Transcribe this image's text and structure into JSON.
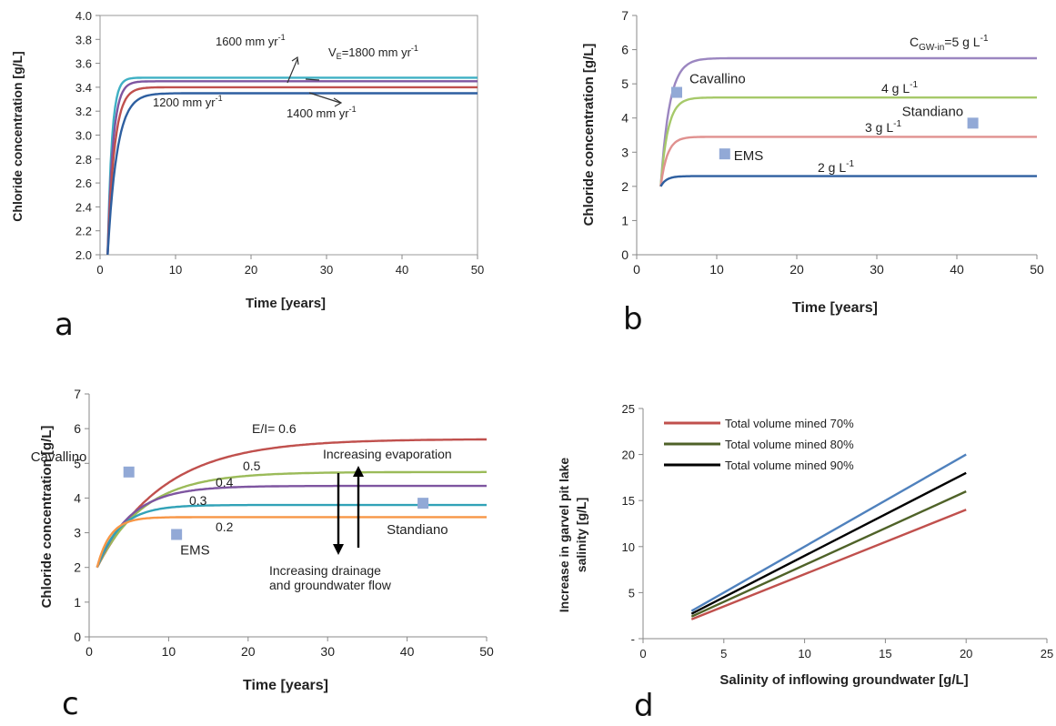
{
  "chart_data": [
    {
      "panel": "a",
      "type": "line",
      "xlabel": "Time [years]",
      "ylabel": "Chloride concentration [g/L]",
      "xlim": [
        0,
        50
      ],
      "ylim": [
        2.0,
        4.0
      ],
      "xticks": [
        0,
        10,
        20,
        30,
        40,
        50
      ],
      "yticks": [
        2.0,
        2.2,
        2.4,
        2.6,
        2.8,
        3.0,
        3.2,
        3.4,
        3.6,
        3.8,
        4.0
      ],
      "grid": false,
      "series": [
        {
          "color": "#3fb0c4",
          "start": [
            1,
            2.0
          ],
          "plateau": 3.48,
          "k": 1.8
        },
        {
          "color": "#7e55a0",
          "start": [
            1,
            2.0
          ],
          "plateau": 3.45,
          "k": 1.4
        },
        {
          "color": "#c0504d",
          "start": [
            1,
            2.0
          ],
          "plateau": 3.4,
          "k": 1.1
        },
        {
          "color": "#2e5fa0",
          "start": [
            1,
            2.0
          ],
          "plateau": 3.35,
          "k": 0.8
        }
      ],
      "annotations": [
        {
          "text": "1600 mm yr",
          "sup": "-1"
        },
        {
          "text": "V",
          "sub": "E",
          "text2": "=1800 mm yr",
          "sup": "-1"
        },
        {
          "text": "1200 mm yr",
          "sup": "-1"
        },
        {
          "text": "1400 mm yr",
          "sup": "-1"
        }
      ]
    },
    {
      "panel": "b",
      "type": "line",
      "xlabel": "Time [years]",
      "ylabel": "Chloride concentration [g/L]",
      "xlim": [
        0,
        50
      ],
      "ylim": [
        0,
        7
      ],
      "xticks": [
        0,
        10,
        20,
        30,
        40,
        50
      ],
      "yticks": [
        0,
        1,
        2,
        3,
        4,
        5,
        6,
        7
      ],
      "grid": false,
      "series": [
        {
          "color": "#9b86c0",
          "start": [
            3,
            2.0
          ],
          "plateau": 5.75,
          "k": 0.9
        },
        {
          "color": "#a6c96a",
          "start": [
            3,
            2.0
          ],
          "plateau": 4.6,
          "k": 1.1
        },
        {
          "color": "#e0918f",
          "start": [
            3,
            2.0
          ],
          "plateau": 3.45,
          "k": 1.2
        },
        {
          "color": "#2e5fa0",
          "start": [
            3,
            2.0
          ],
          "plateau": 2.3,
          "k": 1.4
        }
      ],
      "points": [
        {
          "label": "Cavallino",
          "x": 5,
          "y": 4.75
        },
        {
          "label": "EMS",
          "x": 11,
          "y": 2.95
        },
        {
          "label": "Standiano",
          "x": 42,
          "y": 3.85
        }
      ],
      "annotations": [
        {
          "text": "C",
          "sub": "GW-in",
          "text2": "=5 g L",
          "sup": "-1"
        },
        {
          "text": "4 g L",
          "sup": "-1"
        },
        {
          "text": "3 g L",
          "sup": "-1"
        },
        {
          "text": "2 g L",
          "sup": "-1"
        }
      ]
    },
    {
      "panel": "c",
      "type": "line",
      "xlabel": "Time [years]",
      "ylabel": "Chloride concentration [g/L]",
      "xlim": [
        0,
        50
      ],
      "ylim": [
        0,
        7
      ],
      "xticks": [
        0,
        10,
        20,
        30,
        40,
        50
      ],
      "yticks": [
        0,
        1,
        2,
        3,
        4,
        5,
        6,
        7
      ],
      "grid": false,
      "series": [
        {
          "color": "#c0504d",
          "start": [
            1,
            2.0
          ],
          "plateau": 5.7,
          "k": 0.12
        },
        {
          "color": "#9bbb59",
          "start": [
            1,
            2.0
          ],
          "plateau": 4.75,
          "k": 0.17
        },
        {
          "color": "#7e55a0",
          "start": [
            1,
            2.0
          ],
          "plateau": 4.35,
          "k": 0.24
        },
        {
          "color": "#31a2b7",
          "start": [
            1,
            2.0
          ],
          "plateau": 3.8,
          "k": 0.35
        },
        {
          "color": "#f79646",
          "start": [
            1,
            2.0
          ],
          "plateau": 3.45,
          "k": 0.6
        }
      ],
      "points": [
        {
          "label": "Cavallino",
          "x": 5,
          "y": 4.75
        },
        {
          "label": "EMS",
          "x": 11,
          "y": 2.95
        },
        {
          "label": "Standiano",
          "x": 42,
          "y": 3.85
        }
      ],
      "annotations": [
        "E/I= 0.6",
        "0.5",
        "0.4",
        "0.3",
        "0.2",
        "Increasing evaporation",
        "Increasing drainage",
        "and groundwater flow"
      ]
    },
    {
      "panel": "d",
      "type": "line",
      "xlabel": "Salinity of inflowing groundwater [g/L]",
      "ylabel": "Increase in garvel pit lake salinity [g/L]",
      "ylabel_lines": [
        "Increase in garvel pit lake",
        "salinity [g/L]"
      ],
      "xlim": [
        0,
        25
      ],
      "ylim": [
        0,
        25
      ],
      "xticks": [
        0,
        5,
        10,
        15,
        20,
        25
      ],
      "yticks": [
        0,
        5,
        10,
        15,
        20,
        25
      ],
      "ytick_labels": [
        "-",
        "5",
        "10",
        "15",
        "20",
        "25"
      ],
      "grid": false,
      "legend_position": "top-left",
      "series": [
        {
          "name": "Total volume mined 70%",
          "color": "#c0504d",
          "x": [
            3,
            20
          ],
          "y": [
            2.1,
            14.0
          ]
        },
        {
          "name": "Total volume mined 80%",
          "color": "#4f6228",
          "x": [
            3,
            20
          ],
          "y": [
            2.4,
            16.0
          ]
        },
        {
          "name": "Total volume mined 90%",
          "color": "#000000",
          "x": [
            3,
            20
          ],
          "y": [
            2.7,
            18.0
          ]
        },
        {
          "color": "#4f81bd",
          "x": [
            3,
            20
          ],
          "y": [
            3.0,
            20.0
          ]
        }
      ]
    }
  ],
  "panel_letters": [
    "a",
    "b",
    "c",
    "d"
  ]
}
